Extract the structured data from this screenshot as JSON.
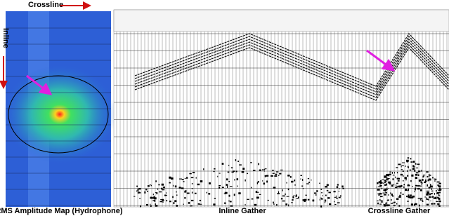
{
  "labels": {
    "crossline": "Crossline",
    "inline": "Inline",
    "map_caption": "RMS Amplitude Map (Hydrophone)",
    "inline_gather": "Inline Gather",
    "crossline_gather": "Crossline Gather"
  }
}
